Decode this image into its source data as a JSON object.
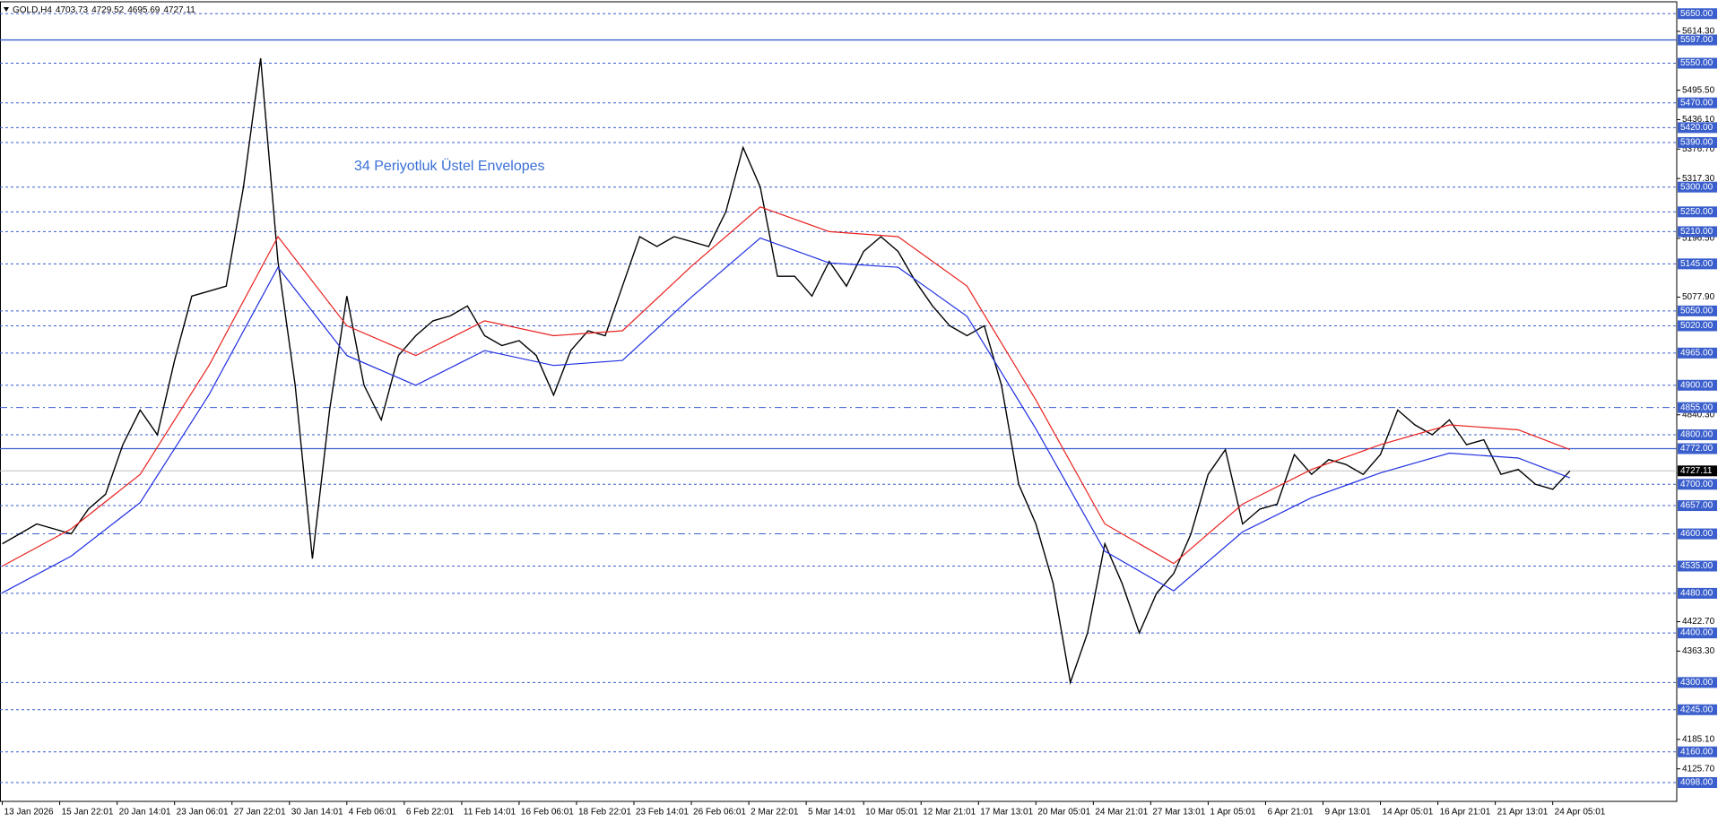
{
  "chart_data": {
    "type": "line",
    "title": "GOLD,H4",
    "ohlc": [
      4703.73,
      4729.52,
      4695.69,
      4727.11
    ],
    "annotation": "34 Periyotluk Üstel Envelopes",
    "xlim": [
      -0.4,
      291.6
    ],
    "ylim": [
      4060,
      5674
    ],
    "xticks": [
      {
        "value": 0,
        "label": "13 Jan 2026"
      },
      {
        "value": 10,
        "label": "15 Jan 22:01"
      },
      {
        "value": 20,
        "label": "20 Jan 14:01"
      },
      {
        "value": 30,
        "label": "23 Jan 06:01"
      },
      {
        "value": 40,
        "label": "27 Jan 22:01"
      },
      {
        "value": 50,
        "label": "30 Jan 14:01"
      },
      {
        "value": 60,
        "label": "4 Feb 06:01"
      },
      {
        "value": 70,
        "label": "6 Feb 22:01"
      },
      {
        "value": 80,
        "label": "11 Feb 14:01"
      },
      {
        "value": 90,
        "label": "16 Feb 06:01"
      },
      {
        "value": 100,
        "label": "18 Feb 22:01"
      },
      {
        "value": 110,
        "label": "23 Feb 14:01"
      },
      {
        "value": 120,
        "label": "26 Feb 06:01"
      },
      {
        "value": 130,
        "label": "2 Mar 22:01"
      },
      {
        "value": 140,
        "label": "5 Mar 14:01"
      },
      {
        "value": 150,
        "label": "10 Mar 05:01"
      },
      {
        "value": 160,
        "label": "12 Mar 21:01"
      },
      {
        "value": 170,
        "label": "17 Mar 13:01"
      },
      {
        "value": 180,
        "label": "20 Mar 05:01"
      },
      {
        "value": 190,
        "label": "24 Mar 21:01"
      },
      {
        "value": 200,
        "label": "27 Mar 13:01"
      },
      {
        "value": 210,
        "label": "1 Apr 05:01"
      },
      {
        "value": 220,
        "label": "6 Apr 21:01"
      },
      {
        "value": 230,
        "label": "9 Apr 13:01"
      },
      {
        "value": 240,
        "label": "14 Apr 05:01"
      },
      {
        "value": 250,
        "label": "16 Apr 21:01"
      },
      {
        "value": 260,
        "label": "21 Apr 13:01"
      },
      {
        "value": 270,
        "label": "24 Apr 05:01"
      }
    ],
    "yticks": [
      {
        "value": 5614.3,
        "label": "5614.30"
      },
      {
        "value": 5495.5,
        "label": "5495.50"
      },
      {
        "value": 5436.1,
        "label": "5436.10"
      },
      {
        "value": 5376.7,
        "label": "5376.70"
      },
      {
        "value": 5317.3,
        "label": "5317.30"
      },
      {
        "value": 5196.5,
        "label": "5196.50"
      },
      {
        "value": 5077.9,
        "label": "5077.90"
      },
      {
        "value": 4840.3,
        "label": "4840.30"
      },
      {
        "value": 4422.7,
        "label": "4422.70"
      },
      {
        "value": 4363.3,
        "label": "4363.30"
      },
      {
        "value": 4185.1,
        "label": "4185.10"
      },
      {
        "value": 4125.7,
        "label": "4125.70"
      }
    ],
    "levels": [
      {
        "value": 5650,
        "label": "5650.00",
        "style": "dashed"
      },
      {
        "value": 5597,
        "label": "5597.00",
        "style": "solid"
      },
      {
        "value": 5550,
        "label": "5550.00",
        "style": "dashed"
      },
      {
        "value": 5470,
        "label": "5470.00",
        "style": "dashed"
      },
      {
        "value": 5420,
        "label": "5420.00",
        "style": "dashed"
      },
      {
        "value": 5390,
        "label": "5390.00",
        "style": "dashed"
      },
      {
        "value": 5300,
        "label": "5300.00",
        "style": "dashed"
      },
      {
        "value": 5250,
        "label": "5250.00",
        "style": "dashed"
      },
      {
        "value": 5210,
        "label": "5210.00",
        "style": "dashed"
      },
      {
        "value": 5145,
        "label": "5145.00",
        "style": "dashed"
      },
      {
        "value": 5050,
        "label": "5050.00",
        "style": "dashed"
      },
      {
        "value": 5020,
        "label": "5020.00",
        "style": "dashed"
      },
      {
        "value": 4965,
        "label": "4965.00",
        "style": "dashed"
      },
      {
        "value": 4900,
        "label": "4900.00",
        "style": "dashed"
      },
      {
        "value": 4855,
        "label": "4855.00",
        "style": "dashdot"
      },
      {
        "value": 4800,
        "label": "4800.00",
        "style": "dashed"
      },
      {
        "value": 4772,
        "label": "4772.00",
        "style": "solid"
      },
      {
        "value": 4700,
        "label": "4700.00",
        "style": "dashed"
      },
      {
        "value": 4657,
        "label": "4657.00",
        "style": "dashed"
      },
      {
        "value": 4600,
        "label": "4600.00",
        "style": "dashdot"
      },
      {
        "value": 4535,
        "label": "4535.00",
        "style": "dashed"
      },
      {
        "value": 4480,
        "label": "4480.00",
        "style": "dashed"
      },
      {
        "value": 4400,
        "label": "4400.00",
        "style": "dashed"
      },
      {
        "value": 4300,
        "label": "4300.00",
        "style": "dashed"
      },
      {
        "value": 4245,
        "label": "4245.00",
        "style": "dashed"
      },
      {
        "value": 4160,
        "label": "4160.00",
        "style": "dashed"
      },
      {
        "value": 4098,
        "label": "4098.00",
        "style": "dashed"
      }
    ],
    "level_color": "#3a5fcd",
    "last_price": 4727.11,
    "series": [
      {
        "color": "#000000",
        "x": [
          0,
          3,
          6,
          9,
          12,
          15,
          18,
          21,
          24,
          27,
          30,
          33,
          36,
          39,
          42,
          45,
          48,
          51,
          54,
          57,
          60,
          63,
          66,
          69,
          72,
          75,
          78,
          81,
          84,
          87,
          90,
          93,
          96,
          99,
          102,
          105,
          108,
          111,
          114,
          117,
          120,
          123,
          126,
          129,
          132,
          135,
          138,
          141,
          144,
          147,
          150,
          153,
          156,
          159,
          162,
          165,
          168,
          171,
          174,
          177,
          180,
          183,
          186,
          189,
          192,
          195,
          198,
          201,
          204,
          207,
          210,
          213,
          216,
          219,
          222,
          225,
          228,
          231,
          234,
          237,
          240,
          243,
          246,
          249,
          252,
          255,
          258,
          261,
          264,
          267,
          270,
          273
        ],
        "values": [
          4580,
          4600,
          4620,
          4610,
          4600,
          4650,
          4680,
          4780,
          4850,
          4800,
          4950,
          5080,
          5090,
          5100,
          5300,
          5560,
          5150,
          4900,
          4550,
          4850,
          5080,
          4900,
          4830,
          4960,
          5000,
          5030,
          5040,
          5060,
          5000,
          4980,
          4990,
          4960,
          4880,
          4970,
          5010,
          5000,
          5100,
          5200,
          5180,
          5200,
          5190,
          5180,
          5250,
          5380,
          5300,
          5120,
          5120,
          5080,
          5150,
          5100,
          5170,
          5200,
          5170,
          5110,
          5060,
          5020,
          5000,
          5020,
          4900,
          4700,
          4620,
          4500,
          4300,
          4400,
          4580,
          4500,
          4400,
          4480,
          4520,
          4600,
          4720,
          4770,
          4620,
          4650,
          4660,
          4760,
          4720,
          4750,
          4740,
          4720,
          4760,
          4850,
          4820,
          4800,
          4830,
          4780,
          4790,
          4720,
          4730,
          4700,
          4690,
          4727.11
        ]
      },
      {
        "color": "#e8211e",
        "x": [
          0,
          12,
          24,
          36,
          48,
          60,
          72,
          84,
          96,
          108,
          120,
          132,
          144,
          156,
          168,
          180,
          192,
          204,
          216,
          228,
          240,
          252,
          264,
          273
        ],
        "values": [
          4535,
          4610,
          4720,
          4940,
          5200,
          5020,
          4960,
          5030,
          5000,
          5010,
          5140,
          5260,
          5210,
          5200,
          5100,
          4870,
          4620,
          4540,
          4660,
          4730,
          4780,
          4820,
          4810,
          4770
        ]
      },
      {
        "color": "#1f2fe0",
        "x": [
          0,
          12,
          24,
          36,
          48,
          60,
          72,
          84,
          96,
          108,
          120,
          132,
          144,
          156,
          168,
          180,
          192,
          204,
          216,
          228,
          240,
          252,
          264,
          273
        ],
        "values": [
          4481,
          4555,
          4663,
          4881,
          5138,
          4960,
          4900,
          4970,
          4940,
          4950,
          5078,
          5197,
          5147,
          5138,
          5039,
          4812,
          4565,
          4485,
          4604,
          4673,
          4723,
          4763,
          4753,
          4713
        ]
      }
    ]
  }
}
